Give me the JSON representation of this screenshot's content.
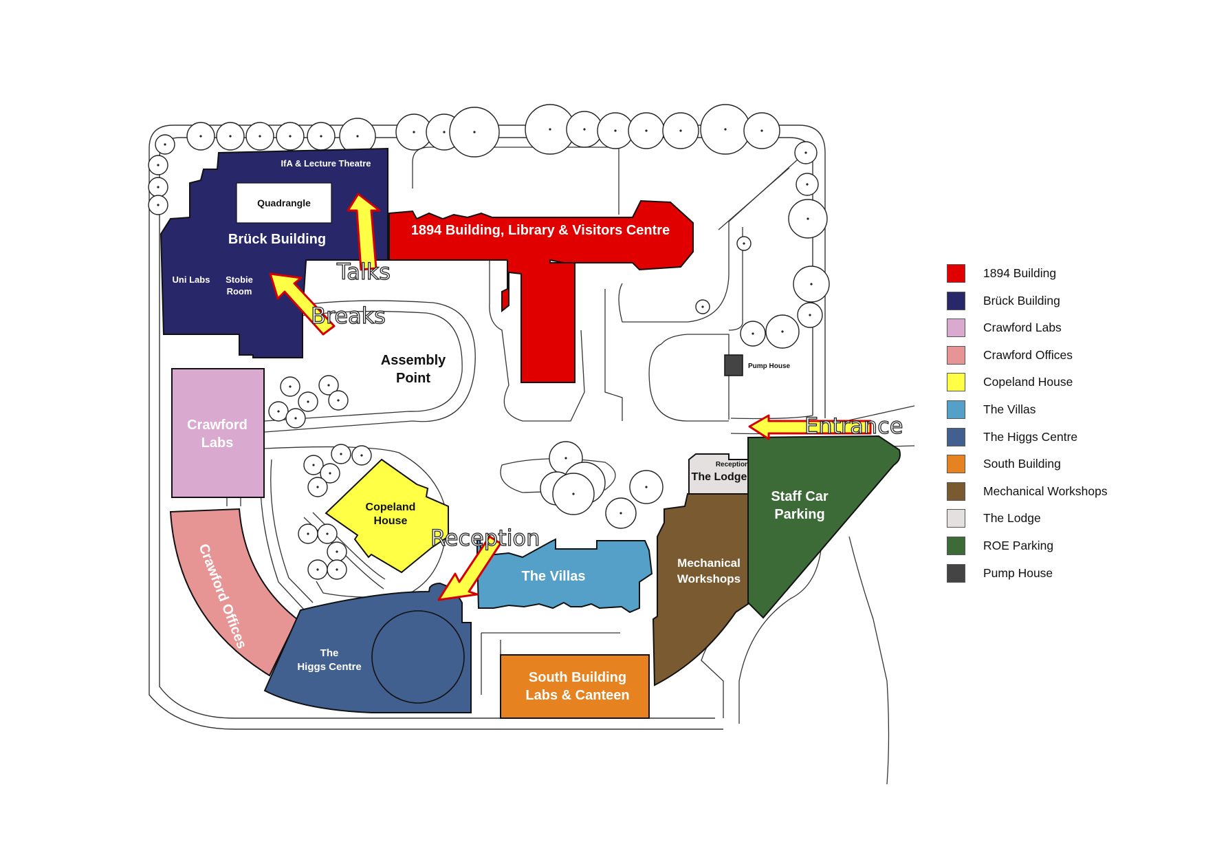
{
  "map": {
    "buildings": {
      "b1894": "1894 Building, Library & Visitors Centre",
      "bruck": "Brück Building",
      "ifa": "IfA & Lecture Theatre",
      "quadrangle": "Quadrangle",
      "unilabs": "Uni Labs",
      "stobie1": "Stobie",
      "stobie2": "Room",
      "assembly1": "Assembly",
      "assembly2": "Point",
      "crawford_labs1": "Crawford",
      "crawford_labs2": "Labs",
      "crawford_offices": "Crawford Offices",
      "copeland1": "Copeland",
      "copeland2": "House",
      "villas": "The Villas",
      "higgs1": "The",
      "higgs2": "Higgs Centre",
      "south1": "South Building",
      "south2": "Labs & Canteen",
      "mech1": "Mechanical",
      "mech2": "Workshops",
      "staff1": "Staff Car",
      "staff2": "Parking",
      "lodge": "The Lodge",
      "lodge_reception": "Reception",
      "pump": "Pump House"
    },
    "annotations": {
      "talks": "Talks",
      "breaks": "Breaks",
      "entrance": "Entrance",
      "reception": "Reception"
    }
  },
  "colors": {
    "b1894": "#e00000",
    "bruck": "#27276a",
    "crawford_labs": "#d9a9cf",
    "crawford_offices": "#e79494",
    "copeland": "#ffff45",
    "villas": "#55a0c9",
    "higgs": "#41608f",
    "south": "#e6821f",
    "mech": "#7a5a30",
    "lodge": "#e4e0e0",
    "parking": "#3c6b38",
    "pump": "#444444",
    "arrow_fill": "#ffff45",
    "arrow_stroke": "#d40000"
  },
  "legend": [
    {
      "label": "1894 Building",
      "color": "#e00000"
    },
    {
      "label": "Brück Building",
      "color": "#27276a"
    },
    {
      "label": "Crawford Labs",
      "color": "#d9a9cf"
    },
    {
      "label": "Crawford Offices",
      "color": "#e79494"
    },
    {
      "label": "Copeland House",
      "color": "#ffff45"
    },
    {
      "label": "The Villas",
      "color": "#55a0c9"
    },
    {
      "label": "The Higgs Centre",
      "color": "#41608f"
    },
    {
      "label": "South Building",
      "color": "#e6821f"
    },
    {
      "label": "Mechanical Workshops",
      "color": "#7a5a30"
    },
    {
      "label": "The Lodge",
      "color": "#e4e0e0"
    },
    {
      "label": "ROE Parking",
      "color": "#3c6b38"
    },
    {
      "label": "Pump House",
      "color": "#444444"
    }
  ]
}
